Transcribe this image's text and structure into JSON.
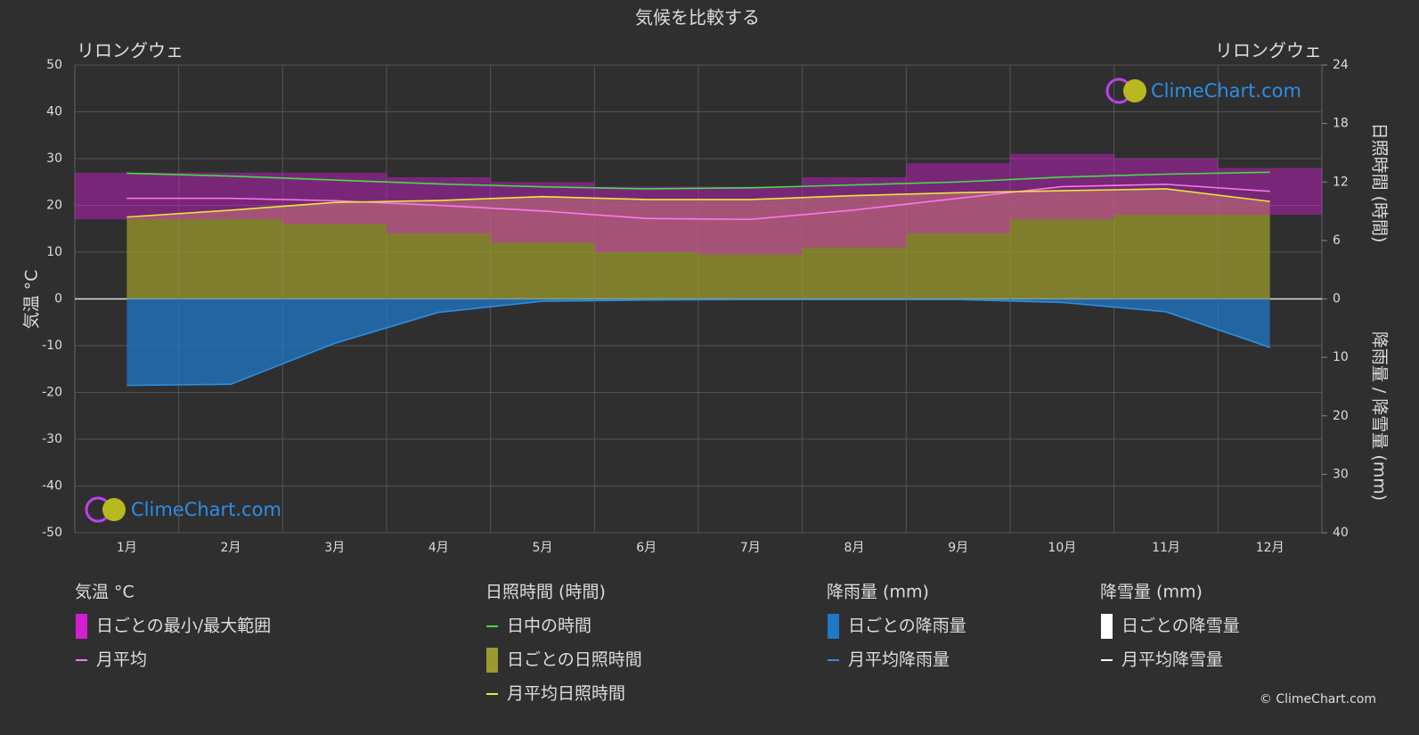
{
  "chart_data": {
    "type": "line",
    "title": "気候を比較する",
    "location_left": "リロングウェ",
    "location_right": "リロングウェ",
    "categories": [
      "1月",
      "2月",
      "3月",
      "4月",
      "5月",
      "6月",
      "7月",
      "8月",
      "9月",
      "10月",
      "11月",
      "12月"
    ],
    "ylim": [
      -50,
      50
    ],
    "yticks": [
      -50,
      -40,
      -30,
      -20,
      -10,
      0,
      10,
      20,
      30,
      40,
      50
    ],
    "y_label": "気温 °C",
    "y2lim": [
      0,
      24
    ],
    "y2ticks": [
      0,
      6,
      12,
      18,
      24
    ],
    "y2_label": "日照時間 (時間)",
    "y3lim": [
      0,
      40
    ],
    "y3ticks": [
      10,
      20,
      30,
      40
    ],
    "y3_label": "降雨量 / 降雪量 (mm)",
    "grid": true,
    "groups": [
      {
        "title": "気温 °C",
        "series": [
          {
            "name": "日ごとの最小/最大範囲",
            "color": "#d21fd2",
            "swatch": "bar",
            "values": [
              27,
              27,
              27,
              26,
              25,
              24,
              24,
              26,
              29,
              31,
              30,
              28
            ],
            "low": [
              17,
              17,
              16,
              14,
              12,
              10,
              9.5,
              11,
              14,
              17,
              18,
              18
            ]
          },
          {
            "name": "月平均",
            "color": "#ff77ee",
            "swatch": "line",
            "values": [
              21.5,
              21.5,
              21,
              20,
              18.8,
              17.2,
              17,
              19,
              21.5,
              24,
              24.5,
              23
            ]
          }
        ]
      },
      {
        "title": "日照時間 (時間)",
        "series": [
          {
            "name": "日中の時間",
            "color": "#44dd44",
            "swatch": "line",
            "axis": "y2",
            "values": [
              12.9,
              12.6,
              12.2,
              11.8,
              11.5,
              11.3,
              11.4,
              11.7,
              12.0,
              12.5,
              12.8,
              13.0
            ]
          },
          {
            "name": "日ごとの日照時間",
            "color": "#9a9a2e",
            "swatch": "bar"
          },
          {
            "name": "月平均日照時間",
            "color": "#e8e83a",
            "swatch": "line",
            "axis": "y2",
            "values": [
              8.4,
              9.1,
              9.9,
              10.1,
              10.5,
              10.2,
              10.2,
              10.6,
              10.9,
              11.1,
              11.3,
              10.0
            ]
          }
        ]
      },
      {
        "title": "降雨量 (mm)",
        "series": [
          {
            "name": "日ごとの降雨量",
            "color": "#1f78c8",
            "swatch": "bar"
          },
          {
            "name": "月平均降雨量",
            "color": "#2d8fe0",
            "swatch": "line",
            "axis": "y3",
            "values": [
              14.8,
              14.6,
              7.6,
              2.3,
              0.4,
              0.2,
              0.1,
              0.1,
              0.1,
              0.6,
              2.2,
              8.3
            ]
          }
        ]
      },
      {
        "title": "降雪量 (mm)",
        "series": [
          {
            "name": "日ごとの降雪量",
            "color": "#ffffff",
            "swatch": "bar"
          },
          {
            "name": "月平均降雪量",
            "color": "#ffffff",
            "swatch": "line"
          }
        ]
      }
    ],
    "watermark": "ClimeChart.com",
    "copyright": "© ClimeChart.com"
  }
}
